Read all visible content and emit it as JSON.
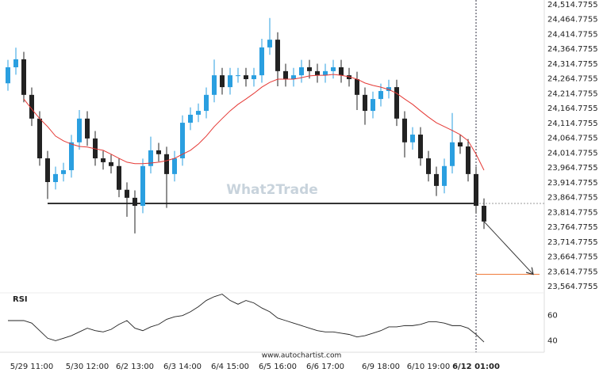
{
  "chart_data": {
    "type": "candlestick",
    "categories": [
      null,
      null,
      null,
      "5/29 11:00",
      null,
      null,
      null,
      null,
      null,
      null,
      "5/30 12:00",
      null,
      null,
      null,
      null,
      null,
      "6/2 13:00",
      null,
      null,
      null,
      null,
      null,
      "6/3 14:00",
      null,
      null,
      null,
      null,
      null,
      "6/4 15:00",
      null,
      null,
      null,
      null,
      null,
      "6/5 16:00",
      null,
      null,
      null,
      null,
      null,
      "6/6 17:00",
      null,
      null,
      null,
      null,
      null,
      null,
      "6/9 18:00",
      null,
      null,
      null,
      null,
      null,
      "6/10 19:00",
      null,
      null,
      null,
      null,
      null,
      "6/12 01:00",
      null
    ],
    "series": [
      {
        "up_color": "#2a9fe0",
        "down_color": "#222222",
        "open": [
          24250,
          24304,
          24331,
          24211,
          24131,
          23997,
          23917,
          23944,
          23957,
          24051,
          24131,
          24064,
          23997,
          23984,
          23971,
          23891,
          23864,
          23837,
          23971,
          24024,
          24011,
          23944,
          23997,
          24117,
          24144,
          24157,
          24211,
          24277,
          24237,
          24277,
          24277,
          24264,
          24277,
          24371,
          24397,
          24291,
          24264,
          24277,
          24304,
          24291,
          24277,
          24291,
          24304,
          24277,
          24264,
          24211,
          24157,
          24197,
          24224,
          24237,
          24131,
          24051,
          24077,
          23997,
          23944,
          23904,
          23971,
          24051,
          24037,
          23944,
          23837
        ],
        "high": [
          24329,
          24370,
          24356,
          24236,
          24156,
          24022,
          23969,
          23982,
          24076,
          24160,
          24156,
          24089,
          24022,
          24009,
          23996,
          23916,
          23889,
          23996,
          24070,
          24049,
          24036,
          24022,
          24142,
          24169,
          24182,
          24236,
          24330,
          24302,
          24302,
          24302,
          24302,
          24302,
          24400,
          24470,
          24422,
          24316,
          24302,
          24329,
          24329,
          24316,
          24316,
          24329,
          24329,
          24302,
          24289,
          24236,
          24222,
          24249,
          24262,
          24262,
          24156,
          24102,
          24102,
          24022,
          23969,
          23996,
          24150,
          24076,
          24062,
          23969,
          23862
        ],
        "low": [
          24225,
          24279,
          24186,
          24106,
          23972,
          23860,
          23892,
          23919,
          23932,
          24026,
          24039,
          23972,
          23959,
          23946,
          23866,
          23800,
          23744,
          23812,
          23946,
          23986,
          23830,
          23919,
          23972,
          24092,
          24119,
          24132,
          24186,
          24212,
          24212,
          24252,
          24239,
          24239,
          24252,
          24346,
          24240,
          24239,
          24239,
          24252,
          24266,
          24252,
          24252,
          24266,
          24252,
          24239,
          24160,
          24110,
          24132,
          24172,
          24199,
          24106,
          24000,
          24026,
          23972,
          23919,
          23870,
          23879,
          23946,
          24012,
          23919,
          23812,
          23759
        ],
        "close": [
          24304,
          24331,
          24211,
          24131,
          23997,
          23917,
          23944,
          23957,
          24051,
          24131,
          24064,
          23997,
          23984,
          23971,
          23891,
          23864,
          23837,
          23971,
          24024,
          24011,
          23944,
          23997,
          24117,
          24144,
          24157,
          24211,
          24277,
          24237,
          24277,
          24277,
          24264,
          24277,
          24371,
          24397,
          24291,
          24264,
          24277,
          24304,
          24291,
          24277,
          24291,
          24304,
          24277,
          24264,
          24211,
          24157,
          24197,
          24224,
          24237,
          24131,
          24051,
          24077,
          23997,
          23944,
          23904,
          23971,
          24051,
          24037,
          23944,
          23837,
          23784
        ]
      },
      {
        "type": "line",
        "color": "#e53935",
        "values": [
          null,
          null,
          24197,
          24163,
          24131,
          24104,
          24072,
          24056,
          24045,
          24037,
          24035,
          24029,
          24024,
          24011,
          23997,
          23984,
          23979,
          23979,
          23981,
          23984,
          23989,
          23997,
          24011,
          24024,
          24045,
          24072,
          24104,
          24131,
          24157,
          24179,
          24197,
          24216,
          24237,
          24253,
          24264,
          24264,
          24264,
          24269,
          24275,
          24277,
          24277,
          24280,
          24277,
          24272,
          24264,
          24251,
          24243,
          24237,
          24229,
          24216,
          24197,
          24179,
          24157,
          24136,
          24117,
          24104,
          24091,
          24077,
          24056,
          24011,
          23957
        ]
      }
    ],
    "ylim": [
      23543.4,
      24530.8
    ],
    "yticks": [
      {
        "value": 24514.7755,
        "label": "24,514.7755"
      },
      {
        "value": 24464.7755,
        "label": "24,464.7755"
      },
      {
        "value": 24414.7755,
        "label": "24,414.7755"
      },
      {
        "value": 24364.7755,
        "label": "24,364.7755"
      },
      {
        "value": 24314.7755,
        "label": "24,314.7755"
      },
      {
        "value": 24264.7755,
        "label": "24,264.7755"
      },
      {
        "value": 24214.7755,
        "label": "24,214.7755"
      },
      {
        "value": 24164.7755,
        "label": "24,164.7755"
      },
      {
        "value": 24114.7755,
        "label": "24,114.7755"
      },
      {
        "value": 24064.7755,
        "label": "24,064.7755"
      },
      {
        "value": 24014.7755,
        "label": "24,014.7755"
      },
      {
        "value": 23964.7755,
        "label": "23,964.7755"
      },
      {
        "value": 23914.7755,
        "label": "23,914.7755"
      },
      {
        "value": 23864.7755,
        "label": "23,864.7755"
      },
      {
        "value": 23814.7755,
        "label": "23,814.7755"
      },
      {
        "value": 23764.7755,
        "label": "23,764.7755"
      },
      {
        "value": 23714.7755,
        "label": "23,714.7755"
      },
      {
        "value": 23664.7755,
        "label": "23,664.7755"
      },
      {
        "value": 23614.7755,
        "label": "23,614.7755"
      },
      {
        "value": 23564.7755,
        "label": "23,564.7755"
      }
    ],
    "support_level": 23845,
    "target_level": 23606,
    "watermark": "What2Trade",
    "rsi": {
      "title": "RSI",
      "color": "#222222",
      "ylim": [
        34,
        78
      ],
      "yticks": [
        60,
        40
      ],
      "values": [
        56,
        56,
        56,
        54,
        48,
        42,
        40,
        42,
        44,
        47,
        50,
        48,
        47,
        49,
        53,
        56,
        50,
        48,
        51,
        53,
        57,
        59,
        60,
        63,
        67,
        72,
        75,
        77,
        72,
        69,
        72,
        70,
        66,
        63,
        58,
        56,
        54,
        52,
        50,
        48,
        47,
        47,
        46,
        45,
        43,
        44,
        46,
        48,
        51,
        51,
        52,
        52,
        53,
        55,
        55,
        54,
        52,
        52,
        50,
        45,
        39
      ]
    },
    "source": "www.autochartist.com"
  }
}
